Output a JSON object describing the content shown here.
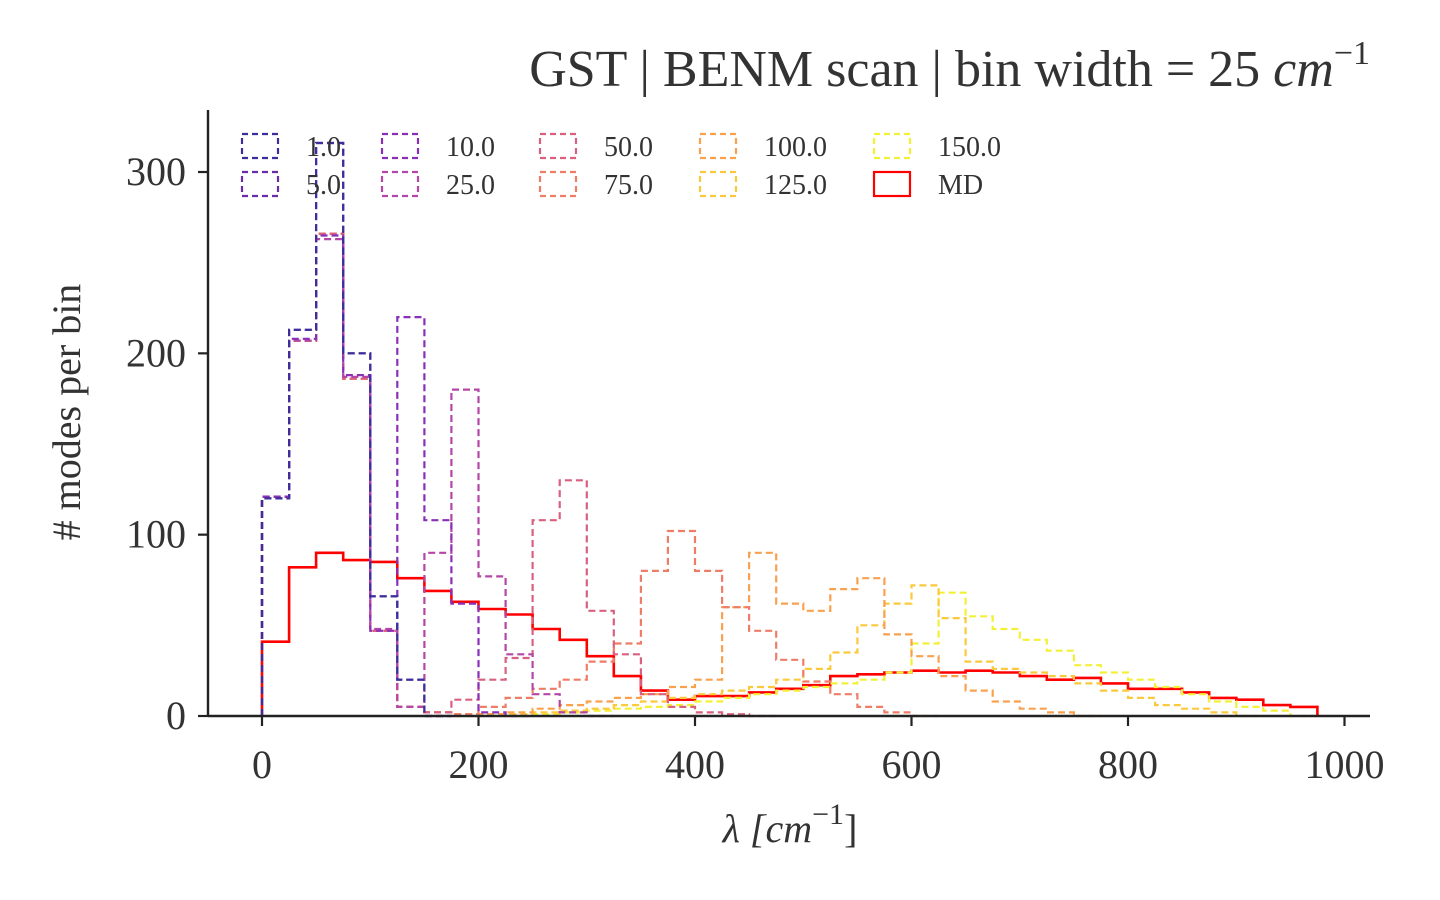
{
  "chart_data": {
    "type": "histogram-step",
    "title_main": "GST | BENM scan | bin width = 25 ",
    "title_unit": "cm",
    "title_sup": "−1",
    "xlabel_main": "λ [",
    "xlabel_unit": "cm",
    "xlabel_sup": "−1",
    "xlabel_end": "]",
    "ylabel": "# modes per bin",
    "xlim": [
      -50,
      1020
    ],
    "ylim": [
      0,
      335
    ],
    "xticks": [
      0,
      200,
      400,
      600,
      800,
      1000
    ],
    "yticks": [
      0,
      100,
      200,
      300
    ],
    "bin_width": 25,
    "legend_position": "top",
    "series": [
      {
        "name": "1.0",
        "color": "#3a2f9c",
        "dashed": true,
        "values": [
          120,
          213,
          316,
          200,
          66,
          20,
          0
        ]
      },
      {
        "name": "5.0",
        "color": "#6a2ca8",
        "dashed": true,
        "values": [
          120,
          213,
          316,
          200,
          66,
          20,
          0
        ]
      },
      {
        "name": "10.0",
        "color": "#8a2fb8",
        "dashed": true,
        "values": [
          121,
          208,
          265,
          188,
          47,
          220,
          108,
          62,
          2,
          0
        ]
      },
      {
        "name": "25.0",
        "color": "#b546a6",
        "dashed": true,
        "values": [
          121,
          207,
          263,
          187,
          48,
          5,
          90,
          180,
          77,
          34,
          12,
          2,
          0
        ]
      },
      {
        "name": "50.0",
        "color": "#d9607f",
        "dashed": true,
        "values": [
          121,
          207,
          266,
          186,
          47,
          5,
          2,
          9,
          20,
          32,
          108,
          130,
          58,
          34,
          12,
          5,
          2,
          1,
          0
        ]
      },
      {
        "name": "75.0",
        "color": "#ee7d68",
        "dashed": true,
        "values": [
          121,
          207,
          266,
          186,
          47,
          5,
          2,
          1,
          5,
          10,
          15,
          20,
          30,
          40,
          80,
          102,
          80,
          60,
          47,
          31,
          19,
          12,
          5,
          2,
          0
        ]
      },
      {
        "name": "100.0",
        "color": "#f9a14f",
        "dashed": true,
        "values": [
          121,
          207,
          266,
          186,
          47,
          5,
          2,
          1,
          1,
          2,
          4,
          6,
          8,
          10,
          12,
          16,
          20,
          60,
          90,
          62,
          58,
          70,
          76,
          45,
          33,
          22,
          14,
          8,
          4,
          2,
          0
        ]
      },
      {
        "name": "125.0",
        "color": "#fbc93c",
        "dashed": true,
        "values": [
          121,
          207,
          266,
          186,
          47,
          5,
          2,
          1,
          1,
          1,
          2,
          3,
          4,
          6,
          8,
          10,
          12,
          14,
          16,
          20,
          26,
          35,
          50,
          62,
          72,
          54,
          30,
          26,
          24,
          22,
          18,
          14,
          10,
          6,
          4,
          2,
          0
        ]
      },
      {
        "name": "150.0",
        "color": "#f3f038",
        "dashed": true,
        "values": [
          121,
          207,
          266,
          186,
          47,
          5,
          2,
          1,
          1,
          1,
          1,
          2,
          3,
          4,
          5,
          6,
          8,
          10,
          12,
          14,
          16,
          18,
          20,
          24,
          40,
          68,
          55,
          48,
          42,
          36,
          28,
          24,
          20,
          16,
          12,
          8,
          5,
          3,
          0
        ]
      },
      {
        "name": "MD",
        "color": "#ff0000",
        "dashed": false,
        "values": [
          41,
          82,
          90,
          86,
          85,
          76,
          69,
          63,
          59,
          56,
          48,
          42,
          33,
          22,
          14,
          9,
          11,
          11,
          13,
          15,
          17,
          22,
          23,
          24,
          25,
          24,
          25,
          24,
          22,
          20,
          21,
          18,
          15,
          15,
          13,
          10,
          9,
          6,
          5
        ]
      }
    ]
  }
}
